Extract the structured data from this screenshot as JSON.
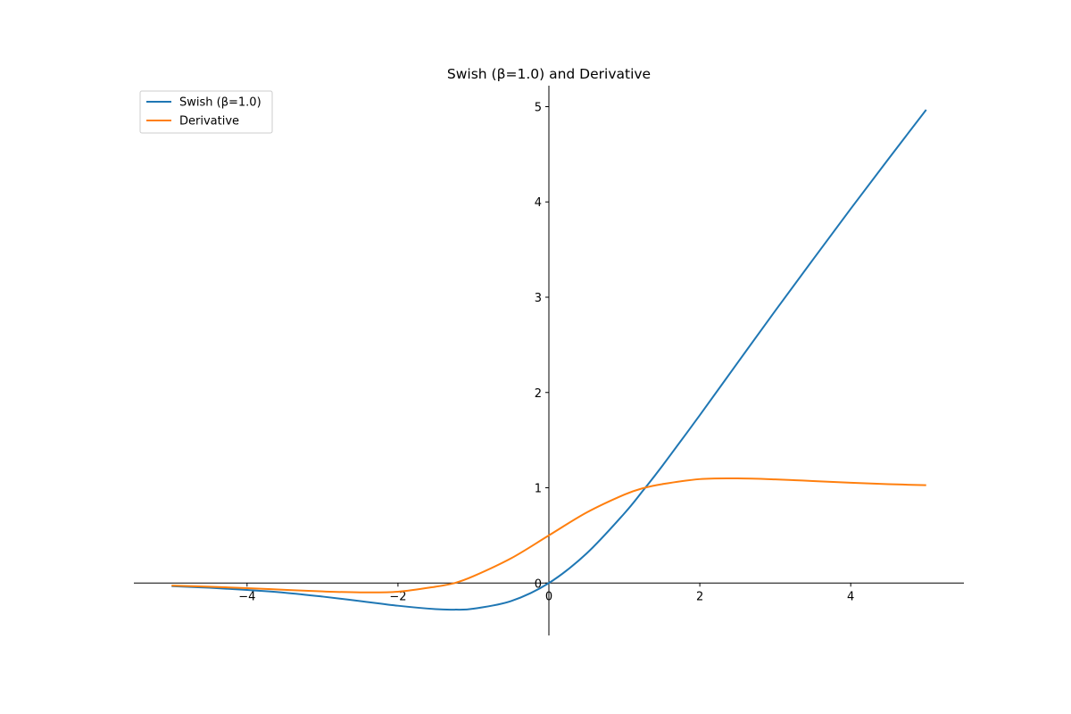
{
  "chart_data": {
    "type": "line",
    "title": "Swish (β=1.0) and Derivative",
    "xlabel": "",
    "ylabel": "",
    "xlim": [
      -5.5,
      5.5
    ],
    "ylim": [
      -0.55,
      5.22
    ],
    "x_ticks": [
      -4,
      -2,
      0,
      2,
      4
    ],
    "y_ticks": [
      0,
      1,
      2,
      3,
      4,
      5
    ],
    "x_tick_labels": [
      "−4",
      "−2",
      "0",
      "2",
      "4"
    ],
    "y_tick_labels": [
      "0",
      "1",
      "2",
      "3",
      "4",
      "5"
    ],
    "grid": false,
    "legend_position": "top-left",
    "spines": "centered at origin",
    "x": [
      -5.0,
      -4.5,
      -4.0,
      -3.5,
      -3.0,
      -2.5,
      -2.0,
      -1.5,
      -1.25,
      -1.0,
      -0.5,
      0.0,
      0.5,
      1.0,
      1.25,
      1.5,
      2.0,
      2.5,
      3.0,
      3.5,
      4.0,
      4.5,
      5.0
    ],
    "series": [
      {
        "name": "Swish (β=1.0)",
        "color": "#1f77b4",
        "values": [
          -0.033,
          -0.049,
          -0.072,
          -0.101,
          -0.142,
          -0.189,
          -0.238,
          -0.274,
          -0.279,
          -0.269,
          -0.189,
          0.0,
          0.311,
          0.731,
          0.973,
          1.226,
          1.762,
          2.311,
          2.858,
          3.395,
          3.928,
          4.451,
          4.967
        ]
      },
      {
        "name": "Derivative",
        "color": "#ff7f0e",
        "values": [
          -0.027,
          -0.038,
          -0.053,
          -0.071,
          -0.088,
          -0.098,
          -0.091,
          -0.038,
          0.0,
          0.072,
          0.26,
          0.5,
          0.74,
          0.928,
          0.996,
          1.038,
          1.091,
          1.098,
          1.088,
          1.071,
          1.053,
          1.038,
          1.027
        ]
      }
    ]
  }
}
